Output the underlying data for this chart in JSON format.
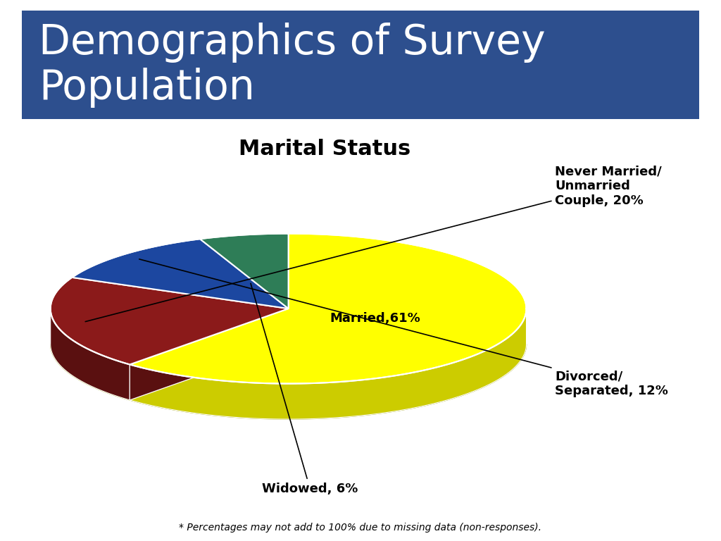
{
  "title_main": "Demographics of Survey\nPopulation",
  "title_main_bg": "#2D4F8E",
  "title_main_color": "#FFFFFF",
  "chart_title": "Marital Status",
  "values": [
    61,
    20,
    12,
    6
  ],
  "colors": [
    "#FFFF00",
    "#8B1A1A",
    "#1C47A0",
    "#2E7D57"
  ],
  "side_colors": [
    "#CCCC00",
    "#5A1010",
    "#0A2060",
    "#1A5438"
  ],
  "label_married": "Married,61%",
  "label_nm": "Never Married/\nUnmarried\nCouple, 20%",
  "label_div": "Divorced/\nSeparated, 12%",
  "label_wid": "Widowed, 6%",
  "footnote": "* Percentages may not add to 100% due to missing data (non-responses).",
  "background_color": "#FFFFFF",
  "title_font_size": 42,
  "chart_title_font_size": 22,
  "annotation_font_size": 13,
  "inside_label_font_size": 13
}
